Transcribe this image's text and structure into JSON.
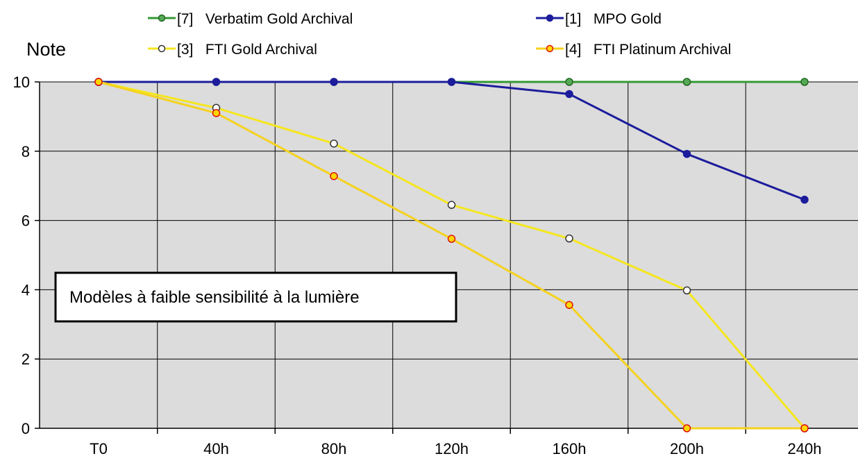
{
  "chart_data": {
    "type": "line",
    "ylabel": "Note",
    "categories": [
      "T0",
      "40h",
      "80h",
      "120h",
      "160h",
      "200h",
      "240h"
    ],
    "ylim": [
      0,
      10
    ],
    "yticks": [
      0,
      2,
      4,
      6,
      8,
      10
    ],
    "grid": true,
    "legend_position": "top",
    "annotation": "Modèles à faible sensibilité à la lumière",
    "series": [
      {
        "name": "[7]   Verbatim Gold Archival",
        "color": "#339933",
        "marker_fill": "#55aa55",
        "marker_stroke": "#226622",
        "values": [
          10,
          10,
          10,
          10,
          10,
          10,
          10
        ]
      },
      {
        "name": "[1]   MPO Gold",
        "color": "#1c1c9c",
        "marker_fill": "#1c1c9c",
        "marker_stroke": "#1c1c9c",
        "values": [
          10,
          10,
          10,
          10,
          9.65,
          7.92,
          6.6
        ]
      },
      {
        "name": "[3]   FTI Gold Archival",
        "color": "#f5e61e",
        "marker_fill": "#ffffff",
        "marker_stroke": "#333333",
        "values": [
          10,
          9.25,
          8.22,
          6.45,
          5.48,
          3.98,
          0
        ]
      },
      {
        "name": "[4]   FTI Platinum Archival",
        "color": "#f5d21e",
        "marker_fill": "#ffd700",
        "marker_stroke": "#e01010",
        "values": [
          10,
          9.1,
          7.28,
          5.47,
          3.56,
          0,
          0
        ]
      }
    ]
  }
}
